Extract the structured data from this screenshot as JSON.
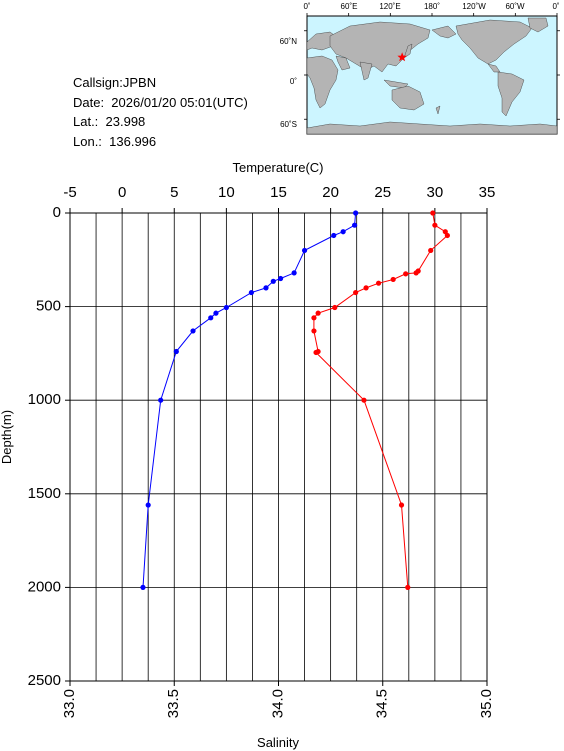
{
  "station": {
    "callsign_line": "Callsign:JPBN",
    "date_line": "Date:  2026/01/20 05:01(UTC)",
    "lat_line": "Lat.:  23.998",
    "lon_line": "Lon.:  136.996"
  },
  "map": {
    "lon_labels": [
      "0˚",
      "60˚E",
      "120˚E",
      "180˚",
      "120˚W",
      "60˚W",
      "0˚"
    ],
    "lat_labels": [
      "60˚N",
      "0˚",
      "60˚S"
    ],
    "station_lat": 23.998,
    "station_lon": 136.996,
    "ocean_color": "#ccf5ff",
    "land_color": "#b4b4b4",
    "marker_color": "#ff0000"
  },
  "chart_data": {
    "type": "line",
    "top_axis_label": "Temperature(C)",
    "bottom_axis_label": "Salinity",
    "y_label": "Depth(m)",
    "temperature_range": [
      -5,
      35
    ],
    "temperature_ticks": [
      "-5",
      "0",
      "5",
      "10",
      "15",
      "20",
      "25",
      "30",
      "35"
    ],
    "salinity_range": [
      33.0,
      35.0
    ],
    "salinity_ticks": [
      "33.0",
      "33.5",
      "34.0",
      "34.5",
      "35.0"
    ],
    "depth_range": [
      0,
      2500
    ],
    "depth_ticks": [
      "0",
      "500",
      "1000",
      "1500",
      "2000",
      "2500"
    ],
    "grid": true,
    "series": [
      {
        "color": "#0000ff",
        "quantity": "temperature",
        "points": [
          {
            "x": 22.4,
            "depth": 0
          },
          {
            "x": 22.3,
            "depth": 65
          },
          {
            "x": 21.2,
            "depth": 100
          },
          {
            "x": 20.3,
            "depth": 120
          },
          {
            "x": 17.5,
            "depth": 200
          },
          {
            "x": 16.5,
            "depth": 320
          },
          {
            "x": 15.2,
            "depth": 350
          },
          {
            "x": 14.5,
            "depth": 365
          },
          {
            "x": 13.8,
            "depth": 400
          },
          {
            "x": 12.4,
            "depth": 425
          },
          {
            "x": 10.0,
            "depth": 505
          },
          {
            "x": 9.0,
            "depth": 535
          },
          {
            "x": 8.5,
            "depth": 560
          },
          {
            "x": 6.8,
            "depth": 630
          },
          {
            "x": 5.2,
            "depth": 740
          },
          {
            "x": 3.7,
            "depth": 1000
          },
          {
            "x": 2.5,
            "depth": 1560
          },
          {
            "x": 2.0,
            "depth": 2000
          }
        ]
      },
      {
        "color": "#ff0000",
        "quantity": "salinity",
        "points": [
          {
            "x": 34.74,
            "depth": 0
          },
          {
            "x": 34.75,
            "depth": 65
          },
          {
            "x": 34.8,
            "depth": 100
          },
          {
            "x": 34.81,
            "depth": 120
          },
          {
            "x": 34.73,
            "depth": 200
          },
          {
            "x": 34.67,
            "depth": 310
          },
          {
            "x": 34.66,
            "depth": 320
          },
          {
            "x": 34.61,
            "depth": 325
          },
          {
            "x": 34.55,
            "depth": 355
          },
          {
            "x": 34.48,
            "depth": 375
          },
          {
            "x": 34.42,
            "depth": 400
          },
          {
            "x": 34.37,
            "depth": 425
          },
          {
            "x": 34.27,
            "depth": 505
          },
          {
            "x": 34.19,
            "depth": 535
          },
          {
            "x": 34.17,
            "depth": 560
          },
          {
            "x": 34.17,
            "depth": 630
          },
          {
            "x": 34.19,
            "depth": 740
          },
          {
            "x": 34.18,
            "depth": 745
          },
          {
            "x": 34.41,
            "depth": 1000
          },
          {
            "x": 34.59,
            "depth": 1560
          },
          {
            "x": 34.62,
            "depth": 2000
          }
        ]
      }
    ]
  }
}
